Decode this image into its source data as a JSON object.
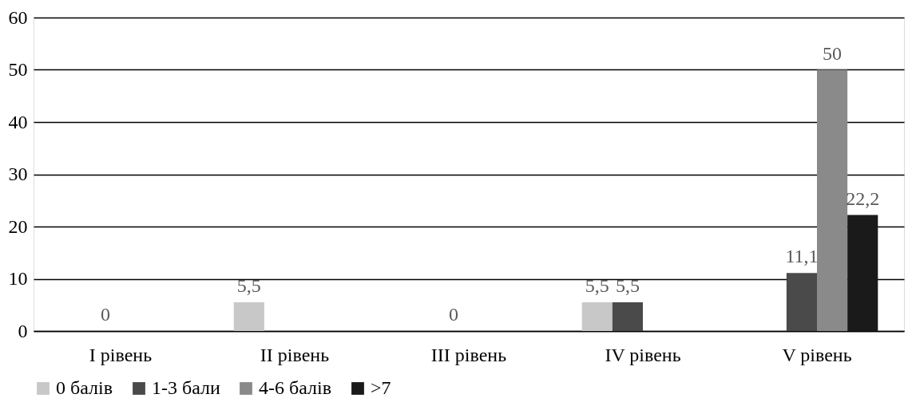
{
  "chart_data": {
    "type": "bar",
    "categories": [
      "I рівень",
      "II рівень",
      "III рівень",
      "IV рівень",
      "V рівень"
    ],
    "series": [
      {
        "name": "0 балів",
        "color": "#c8c8c8",
        "values": [
          null,
          5.5,
          null,
          5.5,
          null
        ],
        "value_labels": [
          null,
          "5,5",
          null,
          "5,5",
          null
        ]
      },
      {
        "name": "1-3 бали",
        "color": "#4a4a4a",
        "values": [
          0,
          null,
          0,
          5.5,
          11.1
        ],
        "value_labels": [
          "0",
          null,
          "0",
          "5,5",
          "11,1"
        ]
      },
      {
        "name": "4-6 балів",
        "color": "#8a8a8a",
        "values": [
          null,
          null,
          null,
          null,
          50
        ],
        "value_labels": [
          null,
          null,
          null,
          null,
          "50"
        ]
      },
      {
        "name": ">7",
        "color": "#1a1a1a",
        "values": [
          null,
          null,
          null,
          null,
          22.2
        ],
        "value_labels": [
          null,
          null,
          null,
          null,
          "22,2"
        ]
      }
    ],
    "ylim": [
      0,
      60
    ],
    "yticks": [
      0,
      10,
      20,
      30,
      40,
      50,
      60
    ],
    "grid": "y",
    "legend": "bottom"
  }
}
